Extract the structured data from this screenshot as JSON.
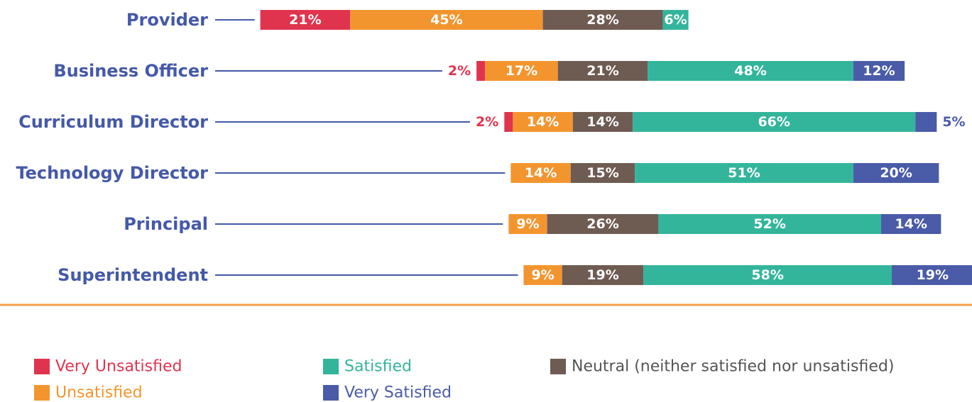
{
  "chart_data": {
    "type": "bar",
    "orientation": "horizontal",
    "stacked": true,
    "diverging": true,
    "categories": [
      "Provider",
      "Business Officer",
      "Curriculum Director",
      "Technology Director",
      "Principal",
      "Superintendent"
    ],
    "series": [
      {
        "name": "Very Unsatisfied",
        "color": "#e0344e",
        "values": [
          21,
          2,
          2,
          null,
          null,
          null
        ],
        "value_labels": [
          "21%",
          "2%",
          "2%",
          null,
          null,
          null
        ]
      },
      {
        "name": "Unsatisfied",
        "color": "#f3952f",
        "values": [
          45,
          17,
          14,
          14,
          9,
          9
        ],
        "value_labels": [
          "45%",
          "17%",
          "14%",
          "14%",
          "9%",
          "9%"
        ]
      },
      {
        "name": "Neutral (neither satisfied nor unsatisfied)",
        "color": "#6e5b52",
        "values": [
          28,
          21,
          14,
          15,
          26,
          19
        ],
        "value_labels": [
          "28%",
          "21%",
          "14%",
          "15%",
          "26%",
          "19%"
        ]
      },
      {
        "name": "Satisfied",
        "color": "#33b59b",
        "values": [
          6,
          48,
          66,
          51,
          52,
          58
        ],
        "value_labels": [
          "6%",
          "48%",
          "66%",
          "51%",
          "52%",
          "58%"
        ]
      },
      {
        "name": "Very Satisfied",
        "color": "#4a5ba8",
        "values": [
          null,
          12,
          5,
          20,
          14,
          19
        ],
        "value_labels": [
          null,
          "12%",
          "5%",
          "20%",
          "14%",
          "19%"
        ]
      }
    ]
  }
}
